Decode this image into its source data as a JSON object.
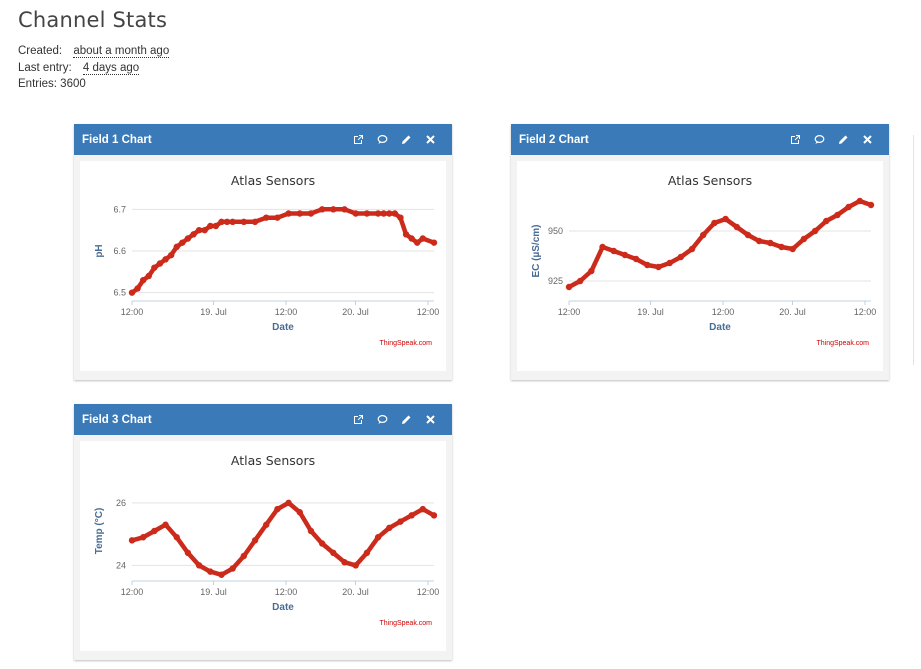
{
  "page": {
    "title": "Channel Stats"
  },
  "stats": {
    "created_label": "Created:",
    "created_value": "about a month ago",
    "last_entry_label": "Last entry:",
    "last_entry_value": "4 days ago",
    "entries_text": "Entries: 3600"
  },
  "icons": [
    "external-link-icon",
    "comment-icon",
    "pencil-icon",
    "close-icon"
  ],
  "colors": {
    "header": "#3a7ab8",
    "series": "#cc2a1a",
    "axis_label": "#4a6d96",
    "credit": "#cc0000"
  },
  "cards": [
    {
      "title": "Field 1 Chart"
    },
    {
      "title": "Field 2 Chart"
    },
    {
      "title": "Field 3 Chart"
    }
  ],
  "chart_data": [
    {
      "type": "line",
      "title": "Atlas Sensors",
      "xlabel": "Date",
      "ylabel": "pH",
      "credit": "ThingSpeak.com",
      "x_ticks": [
        "12:00",
        "19. Jul",
        "12:00",
        "20. Jul",
        "12:00"
      ],
      "y_ticks": [
        "6.5",
        "6.6",
        "6.7"
      ],
      "ylim": [
        6.48,
        6.72
      ],
      "grid": true,
      "series": [
        {
          "x": [
            0,
            0.1,
            0.2,
            0.3,
            0.4,
            0.5,
            0.6,
            0.7,
            0.8,
            0.9,
            1.0,
            1.1,
            1.2,
            1.3,
            1.4,
            1.5,
            1.6,
            1.7,
            1.8,
            2.0,
            2.2,
            2.4,
            2.6,
            2.8,
            3.0,
            3.2,
            3.4,
            3.6,
            3.8,
            4.0,
            4.2,
            4.4,
            4.5,
            4.6,
            4.7,
            4.8,
            4.9,
            5.0,
            5.1,
            5.2,
            5.4
          ],
          "y": [
            6.5,
            6.51,
            6.53,
            6.54,
            6.56,
            6.57,
            6.58,
            6.59,
            6.61,
            6.62,
            6.63,
            6.64,
            6.65,
            6.65,
            6.66,
            6.66,
            6.67,
            6.67,
            6.67,
            6.67,
            6.67,
            6.68,
            6.68,
            6.69,
            6.69,
            6.69,
            6.7,
            6.7,
            6.7,
            6.69,
            6.69,
            6.69,
            6.69,
            6.69,
            6.69,
            6.68,
            6.64,
            6.63,
            6.62,
            6.63,
            6.62
          ]
        }
      ]
    },
    {
      "type": "line",
      "title": "Atlas Sensors",
      "xlabel": "Date",
      "ylabel": "EC (µS/cm)",
      "credit": "ThingSpeak.com",
      "x_ticks": [
        "12:00",
        "19. Jul",
        "12:00",
        "20. Jul",
        "12:00"
      ],
      "y_ticks": [
        "925",
        "950"
      ],
      "ylim": [
        915,
        965
      ],
      "grid": true,
      "series": [
        {
          "x": [
            0,
            0.2,
            0.4,
            0.6,
            0.8,
            1.0,
            1.2,
            1.4,
            1.6,
            1.8,
            2.0,
            2.2,
            2.4,
            2.6,
            2.8,
            3.0,
            3.2,
            3.4,
            3.6,
            3.8,
            4.0,
            4.2,
            4.4,
            4.6,
            4.8,
            5.0,
            5.2,
            5.4
          ],
          "y": [
            922,
            925,
            930,
            942,
            940,
            938,
            936,
            933,
            932,
            934,
            937,
            941,
            948,
            954,
            956,
            952,
            948,
            945,
            944,
            942,
            941,
            946,
            950,
            955,
            958,
            962,
            965,
            963
          ]
        }
      ]
    },
    {
      "type": "line",
      "title": "Atlas Sensors",
      "xlabel": "Date",
      "ylabel": "Temp (°C)",
      "credit": "ThingSpeak.com",
      "x_ticks": [
        "12:00",
        "19. Jul",
        "12:00",
        "20. Jul",
        "12:00"
      ],
      "y_ticks": [
        "24",
        "26"
      ],
      "ylim": [
        23.5,
        26.7
      ],
      "grid": true,
      "series": [
        {
          "x": [
            0,
            0.2,
            0.4,
            0.6,
            0.8,
            1.0,
            1.2,
            1.4,
            1.6,
            1.8,
            2.0,
            2.2,
            2.4,
            2.6,
            2.8,
            3.0,
            3.2,
            3.4,
            3.6,
            3.8,
            4.0,
            4.2,
            4.4,
            4.6,
            4.8,
            5.0,
            5.2,
            5.4
          ],
          "y": [
            24.8,
            24.9,
            25.1,
            25.3,
            24.9,
            24.4,
            24.0,
            23.8,
            23.7,
            23.9,
            24.3,
            24.8,
            25.3,
            25.8,
            26.0,
            25.7,
            25.1,
            24.7,
            24.4,
            24.1,
            24.0,
            24.4,
            24.9,
            25.2,
            25.4,
            25.6,
            25.8,
            25.6
          ]
        }
      ]
    }
  ]
}
